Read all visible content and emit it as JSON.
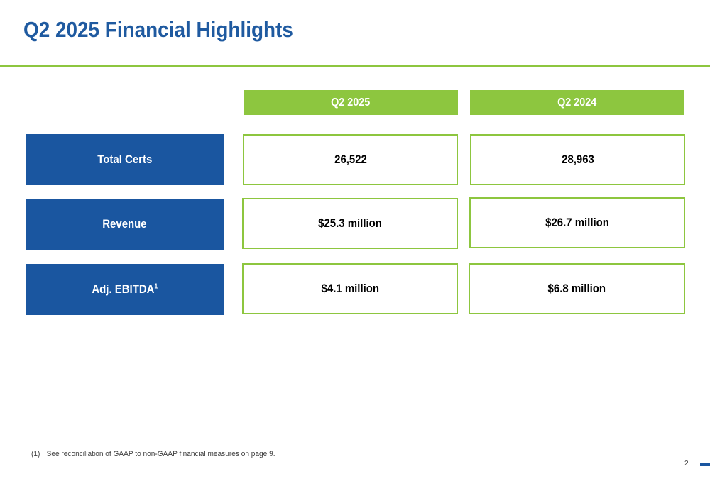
{
  "title": "Q2 2025 Financial Highlights",
  "columns": [
    "Q2 2025",
    "Q2 2024"
  ],
  "rows": [
    {
      "label": "Total Certs",
      "superscript": "",
      "values": [
        "26,522",
        "28,963"
      ]
    },
    {
      "label": "Revenue",
      "superscript": "",
      "values": [
        "$25.3 million",
        "$26.7 million"
      ]
    },
    {
      "label": "Adj. EBITDA",
      "superscript": "1",
      "values": [
        "$4.1 million",
        "$6.8 million"
      ]
    }
  ],
  "footnote": {
    "number": "(1)",
    "text": "See reconciliation of GAAP to non-GAAP financial measures on page 9."
  },
  "page_number": "2",
  "colors": {
    "title": "#1f5aa0",
    "accent_green": "#8dc63f",
    "label_blue": "#1a56a0"
  }
}
